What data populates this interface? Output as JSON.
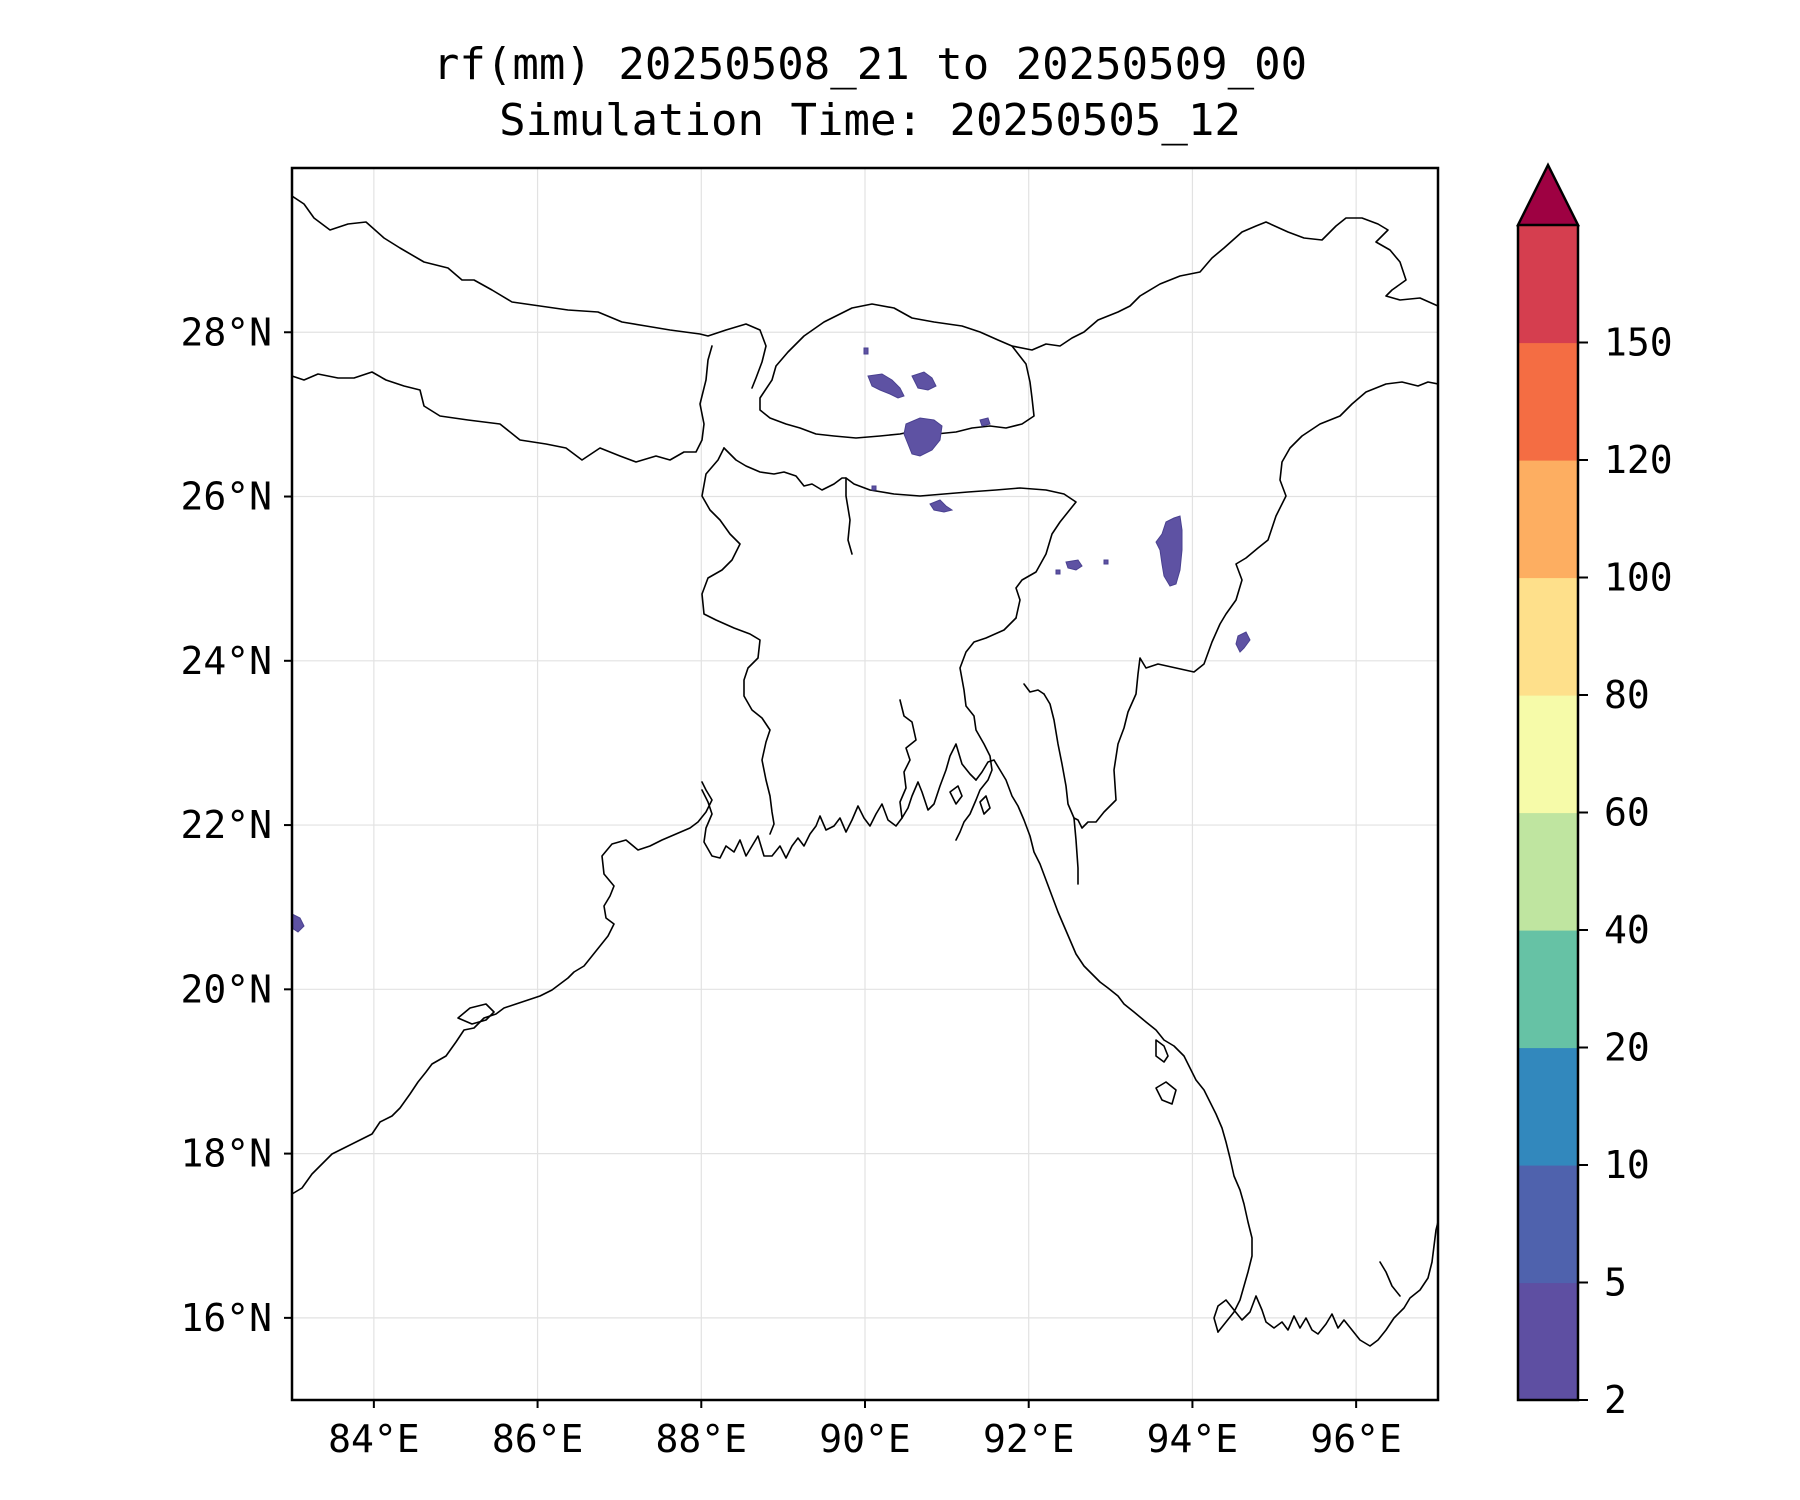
{
  "title": {
    "line1": "rf(mm) 20250508_21 to 20250509_00",
    "line2": "Simulation Time: 20250505_12"
  },
  "map": {
    "lon_range": [
      83.0,
      97.0
    ],
    "lat_range": [
      15.0,
      30.0
    ],
    "lon_ticks": [
      84,
      86,
      88,
      90,
      92,
      94,
      96
    ],
    "lon_tick_labels": [
      "84°E",
      "86°E",
      "88°E",
      "90°E",
      "92°E",
      "94°E",
      "96°E"
    ],
    "lat_ticks": [
      16,
      18,
      20,
      22,
      24,
      26,
      28
    ],
    "lat_tick_labels": [
      "16°N",
      "18°N",
      "20°N",
      "22°N",
      "24°N",
      "26°N",
      "28°N"
    ],
    "gridlines": true,
    "rain_color": "#5e52a3"
  },
  "colorbar": {
    "levels": [
      "2",
      "5",
      "10",
      "20",
      "40",
      "60",
      "80",
      "100",
      "120",
      "150"
    ],
    "colors": [
      "#5e4fa2",
      "#4f62ad",
      "#3288bd",
      "#66c2a5",
      "#bfe5a0",
      "#f6fba9",
      "#fee08b",
      "#fdae61",
      "#f46d43",
      "#d53e4f"
    ],
    "extend_color": "#9e0142",
    "extend": "max"
  }
}
